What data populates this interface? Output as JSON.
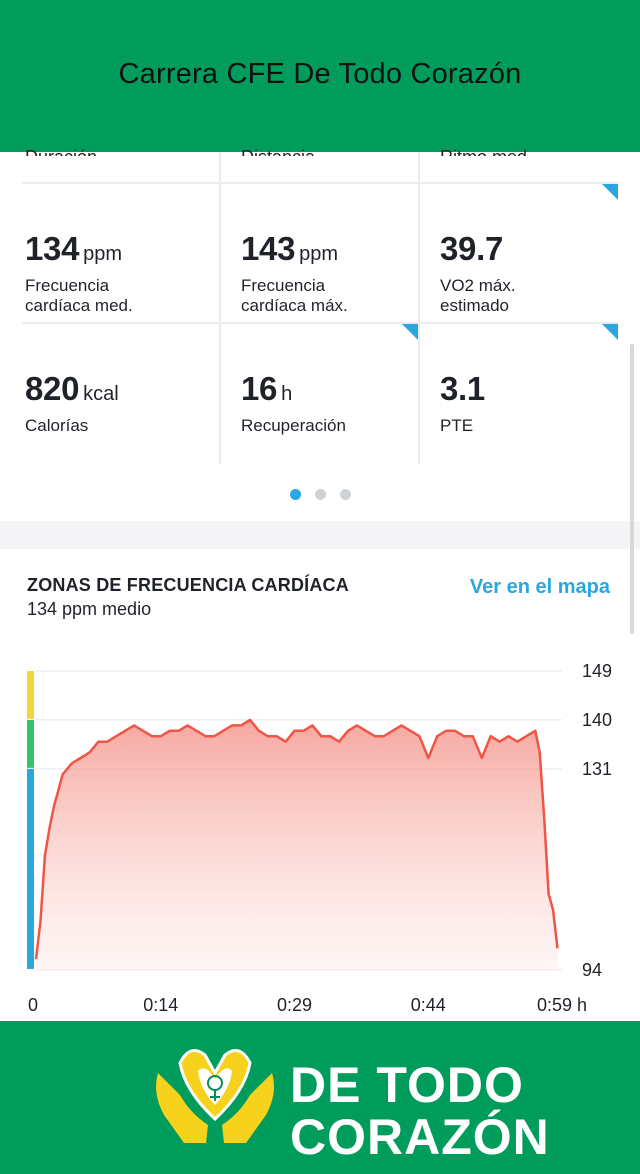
{
  "header": {
    "title": "Carrera CFE De Todo Corazón"
  },
  "stats": {
    "cut_labels": [
      "Duración",
      "Distancia",
      "Ritmo med."
    ],
    "cells": [
      {
        "value": "134",
        "unit": "ppm",
        "label": "Frecuencia\ncardíaca med.",
        "corner": false
      },
      {
        "value": "143",
        "unit": "ppm",
        "label": "Frecuencia\ncardíaca máx.",
        "corner": false
      },
      {
        "value": "39.7",
        "unit": "",
        "label": "VO2 máx.\nestimado",
        "corner": true
      },
      {
        "value": "820",
        "unit": "kcal",
        "label": "Calorías",
        "corner": false
      },
      {
        "value": "16",
        "unit": "h",
        "label": "Recuperación",
        "corner": true
      },
      {
        "value": "3.1",
        "unit": "",
        "label": "PTE",
        "corner": true
      }
    ],
    "page_dots": 3,
    "active_dot": 0
  },
  "zones": {
    "heading": "ZONAS DE FRECUENCIA CARDÍACA",
    "average": "134 ppm medio",
    "map_link": "Ver en el mapa"
  },
  "chart_data": {
    "type": "area",
    "x_tick_labels": [
      "0",
      "0:14",
      "0:29",
      "0:44",
      "0:59 h"
    ],
    "y_tick_labels": [
      "149",
      "140",
      "131",
      "94"
    ],
    "ylim": [
      94,
      149
    ],
    "xlim_minutes": [
      0,
      59
    ],
    "zone_colors": [
      "#f5d33a",
      "#36c46a",
      "#29a8e0"
    ],
    "line_color": "#f05545",
    "x_minutes": [
      0,
      0.5,
      1,
      1.5,
      2,
      2.5,
      3,
      3.5,
      4,
      5,
      6,
      7,
      8,
      9,
      10,
      11,
      12,
      13,
      14,
      15,
      16,
      17,
      18,
      19,
      20,
      21,
      22,
      23,
      24,
      25,
      26,
      27,
      28,
      29,
      30,
      31,
      32,
      33,
      34,
      35,
      36,
      37,
      38,
      39,
      40,
      41,
      42,
      43,
      44,
      45,
      46,
      47,
      48,
      49,
      50,
      51,
      52,
      53,
      54,
      55,
      56,
      56.5,
      57,
      57.5,
      58,
      58.5
    ],
    "values": [
      96,
      103,
      115,
      120,
      124,
      127,
      130,
      131,
      132,
      133,
      134,
      136,
      136,
      137,
      138,
      139,
      138,
      137,
      137,
      138,
      138,
      139,
      138,
      137,
      137,
      138,
      139,
      139,
      140,
      138,
      137,
      137,
      136,
      138,
      138,
      139,
      137,
      137,
      136,
      138,
      139,
      138,
      137,
      137,
      138,
      139,
      138,
      137,
      133,
      137,
      138,
      138,
      137,
      137,
      133,
      137,
      136,
      137,
      136,
      137,
      138,
      134,
      122,
      108,
      105,
      98
    ]
  }
}
